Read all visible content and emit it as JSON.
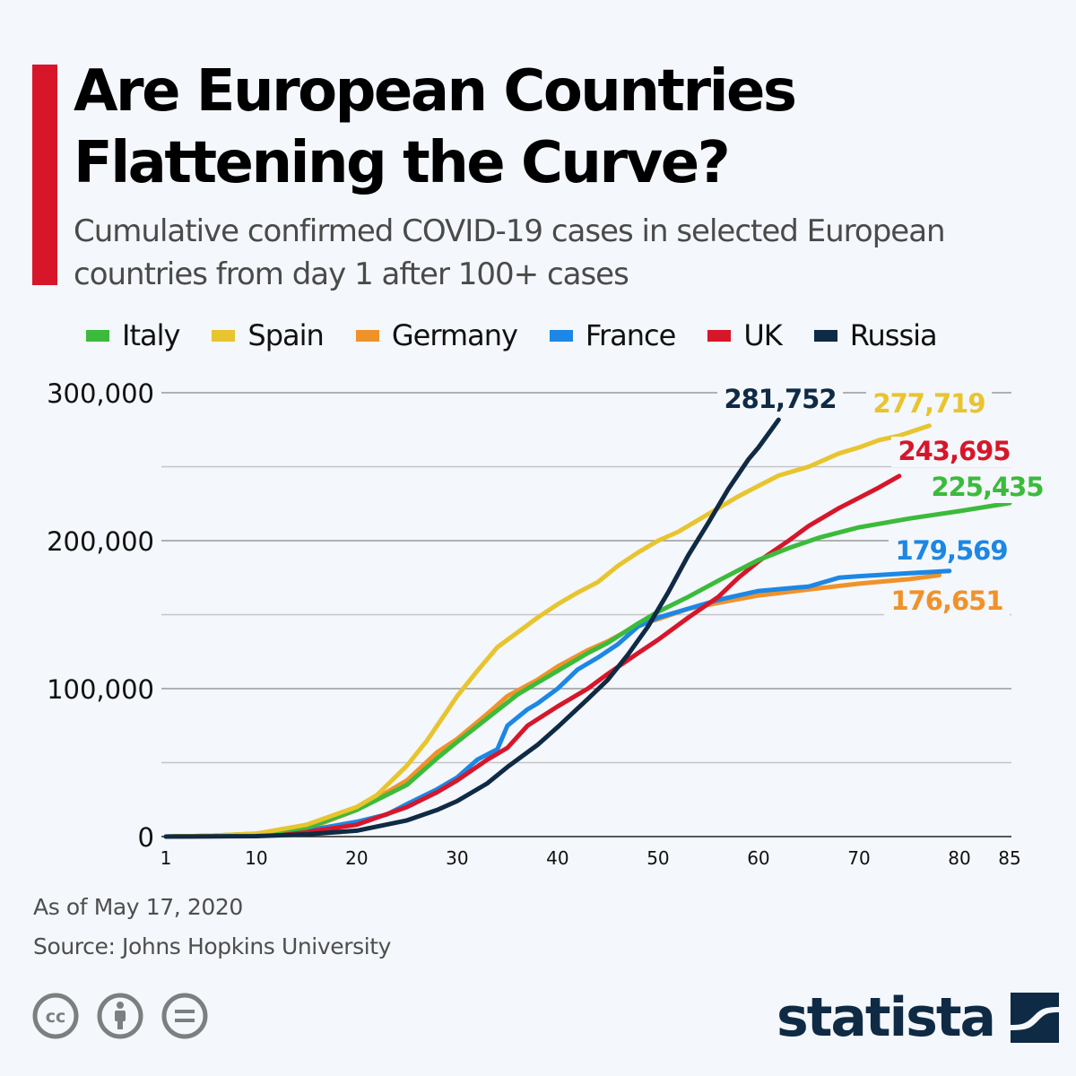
{
  "header": {
    "title": "Are European Countries Flattening the Curve?",
    "subtitle": "Cumulative confirmed COVID-19 cases in selected European countries from day 1 after 100+ cases"
  },
  "footer": {
    "as_of": "As of May 17, 2020",
    "source": "Source: Johns Hopkins University"
  },
  "license_icons": [
    "creative-commons-icon",
    "attribution-icon",
    "no-derivatives-icon"
  ],
  "brand": {
    "name": "statista",
    "color": "#0f2a44"
  },
  "accent_color": "#d7162a",
  "chart_data": {
    "type": "line",
    "title": "Are European Countries Flattening the Curve?",
    "xlabel": "",
    "ylabel": "",
    "xlim": [
      1,
      85
    ],
    "ylim": [
      0,
      300000
    ],
    "x_ticks": [
      1,
      10,
      20,
      30,
      40,
      50,
      60,
      70,
      80,
      85
    ],
    "x_tick_labels": [
      "1",
      "10",
      "20",
      "30",
      "40",
      "50",
      "60",
      "70",
      "80",
      "85"
    ],
    "y_ticks": [
      0,
      100000,
      200000,
      300000
    ],
    "y_tick_labels": [
      "0",
      "100,000",
      "200,000",
      "300,000"
    ],
    "y_gridlines": [
      0,
      50000,
      100000,
      150000,
      200000,
      250000,
      300000
    ],
    "grid": true,
    "legend_position": "top",
    "series": [
      {
        "name": "Italy",
        "color": "#3cba3c",
        "end_label": "225,435",
        "points": [
          [
            1,
            0
          ],
          [
            5,
            500
          ],
          [
            10,
            2000
          ],
          [
            15,
            6000
          ],
          [
            20,
            18000
          ],
          [
            25,
            35000
          ],
          [
            28,
            53000
          ],
          [
            30,
            64000
          ],
          [
            33,
            80000
          ],
          [
            36,
            96000
          ],
          [
            38,
            104000
          ],
          [
            40,
            112000
          ],
          [
            43,
            124000
          ],
          [
            45,
            131000
          ],
          [
            48,
            144000
          ],
          [
            50,
            152000
          ],
          [
            53,
            162000
          ],
          [
            56,
            173000
          ],
          [
            58,
            180000
          ],
          [
            60,
            187000
          ],
          [
            63,
            195000
          ],
          [
            66,
            202000
          ],
          [
            70,
            209000
          ],
          [
            75,
            215000
          ],
          [
            80,
            220000
          ],
          [
            85,
            225435
          ]
        ]
      },
      {
        "name": "Spain",
        "color": "#e8c42e",
        "end_label": "277,719",
        "points": [
          [
            1,
            0
          ],
          [
            5,
            500
          ],
          [
            10,
            2000
          ],
          [
            15,
            8000
          ],
          [
            20,
            20000
          ],
          [
            22,
            28000
          ],
          [
            25,
            48000
          ],
          [
            27,
            65000
          ],
          [
            30,
            95000
          ],
          [
            32,
            112000
          ],
          [
            34,
            128000
          ],
          [
            36,
            138000
          ],
          [
            38,
            148000
          ],
          [
            40,
            157000
          ],
          [
            42,
            165000
          ],
          [
            44,
            172000
          ],
          [
            46,
            183000
          ],
          [
            48,
            192000
          ],
          [
            50,
            200000
          ],
          [
            52,
            206000
          ],
          [
            55,
            218000
          ],
          [
            58,
            230000
          ],
          [
            60,
            237000
          ],
          [
            62,
            244000
          ],
          [
            65,
            250000
          ],
          [
            68,
            259000
          ],
          [
            70,
            263000
          ],
          [
            72,
            268000
          ],
          [
            74,
            271000
          ],
          [
            77,
            277719
          ]
        ]
      },
      {
        "name": "Germany",
        "color": "#f0922a",
        "end_label": "176,651",
        "points": [
          [
            1,
            0
          ],
          [
            10,
            1000
          ],
          [
            15,
            5000
          ],
          [
            20,
            18000
          ],
          [
            25,
            38000
          ],
          [
            28,
            57000
          ],
          [
            30,
            66000
          ],
          [
            33,
            83000
          ],
          [
            35,
            95000
          ],
          [
            38,
            106000
          ],
          [
            40,
            115000
          ],
          [
            43,
            126000
          ],
          [
            45,
            132000
          ],
          [
            48,
            143000
          ],
          [
            50,
            147000
          ],
          [
            53,
            154000
          ],
          [
            56,
            158000
          ],
          [
            60,
            163000
          ],
          [
            65,
            167000
          ],
          [
            70,
            171000
          ],
          [
            75,
            174000
          ],
          [
            78,
            176651
          ]
        ]
      },
      {
        "name": "France",
        "color": "#1c87e5",
        "end_label": "179,569",
        "points": [
          [
            1,
            0
          ],
          [
            10,
            1000
          ],
          [
            15,
            4000
          ],
          [
            20,
            10000
          ],
          [
            23,
            15000
          ],
          [
            25,
            22000
          ],
          [
            28,
            32000
          ],
          [
            30,
            40000
          ],
          [
            32,
            52000
          ],
          [
            34,
            59000
          ],
          [
            35,
            75000
          ],
          [
            37,
            86000
          ],
          [
            38,
            90000
          ],
          [
            40,
            100000
          ],
          [
            42,
            113000
          ],
          [
            44,
            121000
          ],
          [
            46,
            130000
          ],
          [
            48,
            142000
          ],
          [
            50,
            148000
          ],
          [
            53,
            154000
          ],
          [
            56,
            160000
          ],
          [
            60,
            166000
          ],
          [
            65,
            169000
          ],
          [
            68,
            175000
          ],
          [
            70,
            176000
          ],
          [
            75,
            178000
          ],
          [
            79,
            179569
          ]
        ]
      },
      {
        "name": "UK",
        "color": "#d7162a",
        "end_label": "243,695",
        "points": [
          [
            1,
            0
          ],
          [
            10,
            500
          ],
          [
            15,
            3000
          ],
          [
            20,
            8000
          ],
          [
            25,
            20000
          ],
          [
            28,
            30000
          ],
          [
            30,
            38000
          ],
          [
            33,
            52000
          ],
          [
            35,
            60000
          ],
          [
            37,
            75000
          ],
          [
            40,
            88000
          ],
          [
            43,
            100000
          ],
          [
            45,
            110000
          ],
          [
            48,
            124000
          ],
          [
            50,
            133000
          ],
          [
            53,
            148000
          ],
          [
            56,
            162000
          ],
          [
            58,
            175000
          ],
          [
            60,
            186000
          ],
          [
            63,
            200000
          ],
          [
            65,
            210000
          ],
          [
            68,
            222000
          ],
          [
            70,
            229000
          ],
          [
            72,
            236000
          ],
          [
            74,
            243695
          ]
        ]
      },
      {
        "name": "Russia",
        "color": "#0f2a44",
        "end_label": "281,752",
        "points": [
          [
            1,
            0
          ],
          [
            10,
            300
          ],
          [
            15,
            1500
          ],
          [
            20,
            4000
          ],
          [
            25,
            11000
          ],
          [
            28,
            18000
          ],
          [
            30,
            24000
          ],
          [
            33,
            36000
          ],
          [
            35,
            47000
          ],
          [
            38,
            62000
          ],
          [
            40,
            74000
          ],
          [
            43,
            93000
          ],
          [
            45,
            106000
          ],
          [
            47,
            123000
          ],
          [
            49,
            142000
          ],
          [
            51,
            165000
          ],
          [
            53,
            190000
          ],
          [
            55,
            212000
          ],
          [
            57,
            235000
          ],
          [
            59,
            255000
          ],
          [
            60,
            263000
          ],
          [
            62,
            281752
          ]
        ]
      }
    ]
  }
}
